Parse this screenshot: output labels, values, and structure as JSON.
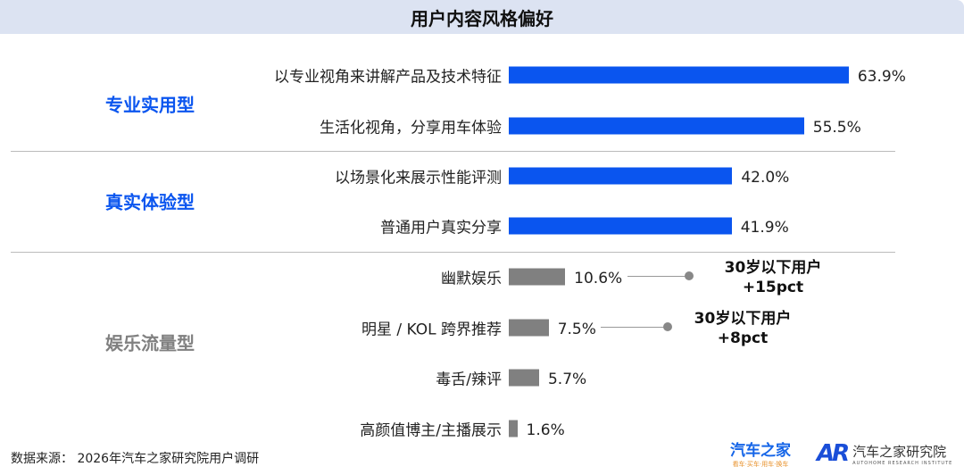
{
  "title": "用户内容风格偏好",
  "chart_data": {
    "type": "bar",
    "orientation": "horizontal",
    "title": "用户内容风格偏好",
    "unit": "%",
    "categories": [
      "以专业视角来讲解产品及技术特征",
      "生活化视角，分享用车体验",
      "以场景化来展示性能评测",
      "普通用户真实分享",
      "幽默娱乐",
      "明星 / KOL 跨界推荐",
      "毒舌/辣评",
      "高颜值博主/主播展示"
    ],
    "values": [
      63.9,
      55.5,
      42.0,
      41.9,
      10.6,
      7.5,
      5.7,
      1.6
    ],
    "value_labels": [
      "63.9%",
      "55.5%",
      "42.0%",
      "41.9%",
      "10.6%",
      "7.5%",
      "5.7%",
      "1.6%"
    ],
    "groups": [
      {
        "label": "专业实用型",
        "rows": [
          0,
          1
        ],
        "color": "#0a55ef"
      },
      {
        "label": "真实体验型",
        "rows": [
          2,
          3
        ],
        "color": "#0a55ef"
      },
      {
        "label": "娱乐流量型",
        "rows": [
          4,
          5,
          6,
          7
        ],
        "color": "#808080"
      }
    ],
    "annotations": [
      {
        "row": 4,
        "line1": "30岁以下用户",
        "line2": "+15pct"
      },
      {
        "row": 5,
        "line1": "30岁以下用户",
        "line2": "+8pct"
      }
    ],
    "colors": {
      "primary": "#0a55ef",
      "secondary": "#808080"
    }
  },
  "source": "数据来源：   2026年汽车之家研究院用户调研",
  "logos": {
    "autohome": "汽车之家",
    "autohome_slogan": "看车·买车·用车·换车",
    "ar_mark": "AR",
    "institute": "汽车之家研究院",
    "institute_en": "AUTOHOME RESEARCH INSTITUTE"
  }
}
